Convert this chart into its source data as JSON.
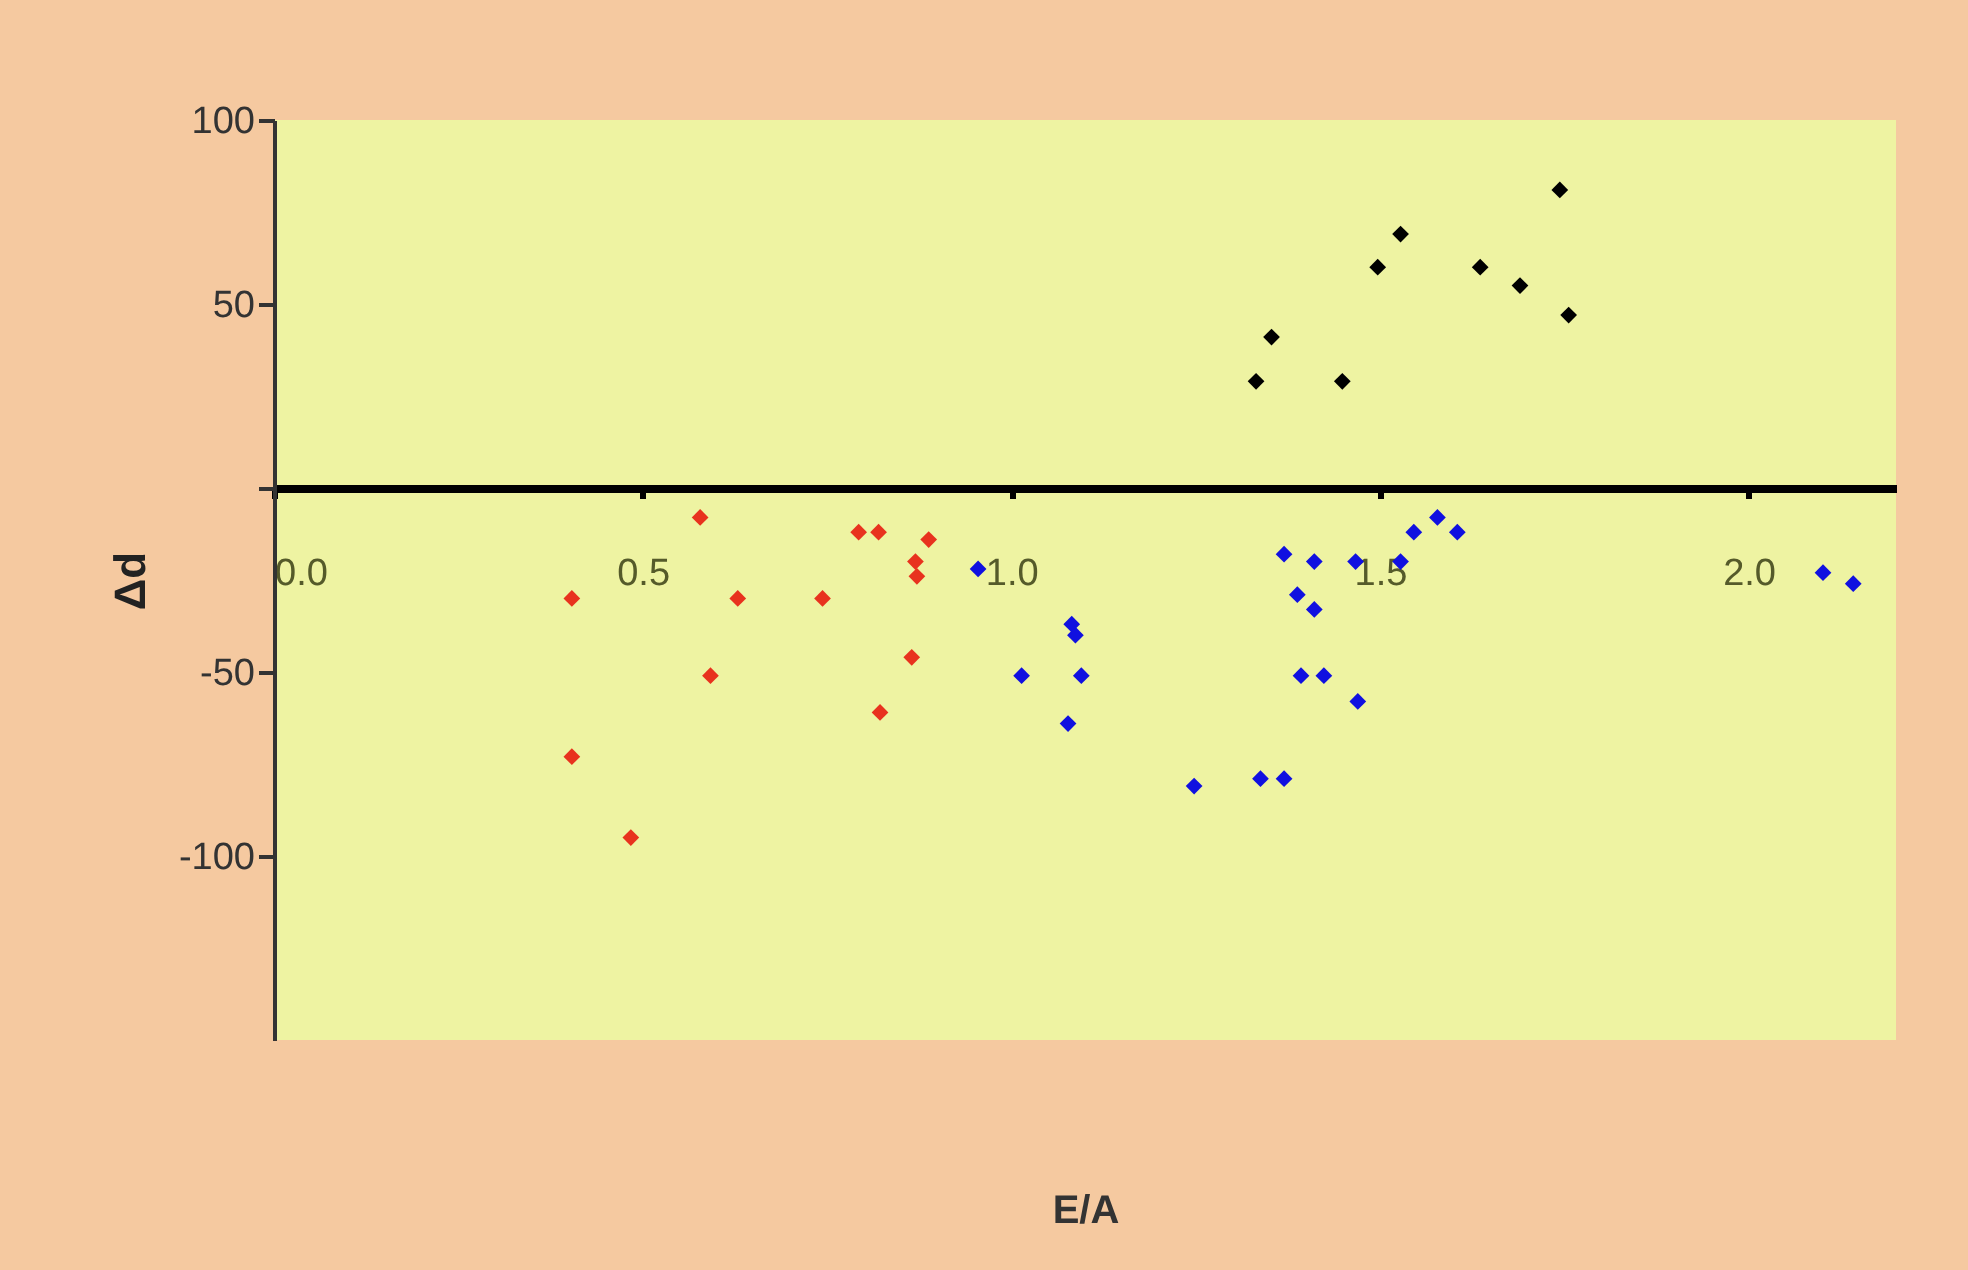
{
  "chart_data": {
    "type": "scatter",
    "xlabel": "E/A",
    "ylabel": "Δd",
    "marker": "diamond",
    "xlim": [
      0,
      2.2
    ],
    "xticks": [
      {
        "value": 0,
        "label": "0.0"
      },
      0.5,
      {
        "value": 1,
        "label": "1.0"
      },
      1.5,
      {
        "value": 2,
        "label": "2.0"
      }
    ],
    "ylim": [
      -150,
      100
    ],
    "yticks": [
      100,
      50,
      {
        "value": 0,
        "label": null
      },
      -50,
      -100
    ],
    "series": [
      {
        "color": "#e8321e",
        "x": [
          0.404,
          0.578,
          0.629,
          0.744,
          0.793,
          0.82,
          0.888,
          0.87,
          0.872,
          0.865,
          0.592,
          0.822,
          0.404,
          0.484
        ],
        "values": [
          -30,
          -8,
          -30,
          -30,
          -12,
          -12,
          -14,
          -20,
          -24,
          -46,
          -51,
          -61,
          -73,
          -95
        ]
      },
      {
        "color": "#1010e0",
        "x": [
          0.955,
          1.082,
          1.087,
          1.014,
          1.095,
          1.077,
          1.248,
          1.338,
          1.37,
          1.37,
          1.411,
          1.467,
          1.528,
          1.546,
          1.578,
          1.605,
          1.388,
          1.411,
          1.393,
          1.424,
          1.47,
          2.101,
          2.142
        ],
        "values": [
          -22,
          -37,
          -40,
          -51,
          -51,
          -64,
          -81,
          -79,
          -79,
          -18,
          -20,
          -20,
          -20,
          -12,
          -8,
          -12,
          -29,
          -33,
          -51,
          -51,
          -58,
          -23,
          -26
        ]
      },
      {
        "color": "#000000",
        "x": [
          1.332,
          1.353,
          1.449,
          1.497,
          1.528,
          1.636,
          1.69,
          1.744,
          1.756
        ],
        "values": [
          29,
          41,
          29,
          60,
          69,
          60,
          55,
          81,
          47
        ]
      }
    ]
  }
}
